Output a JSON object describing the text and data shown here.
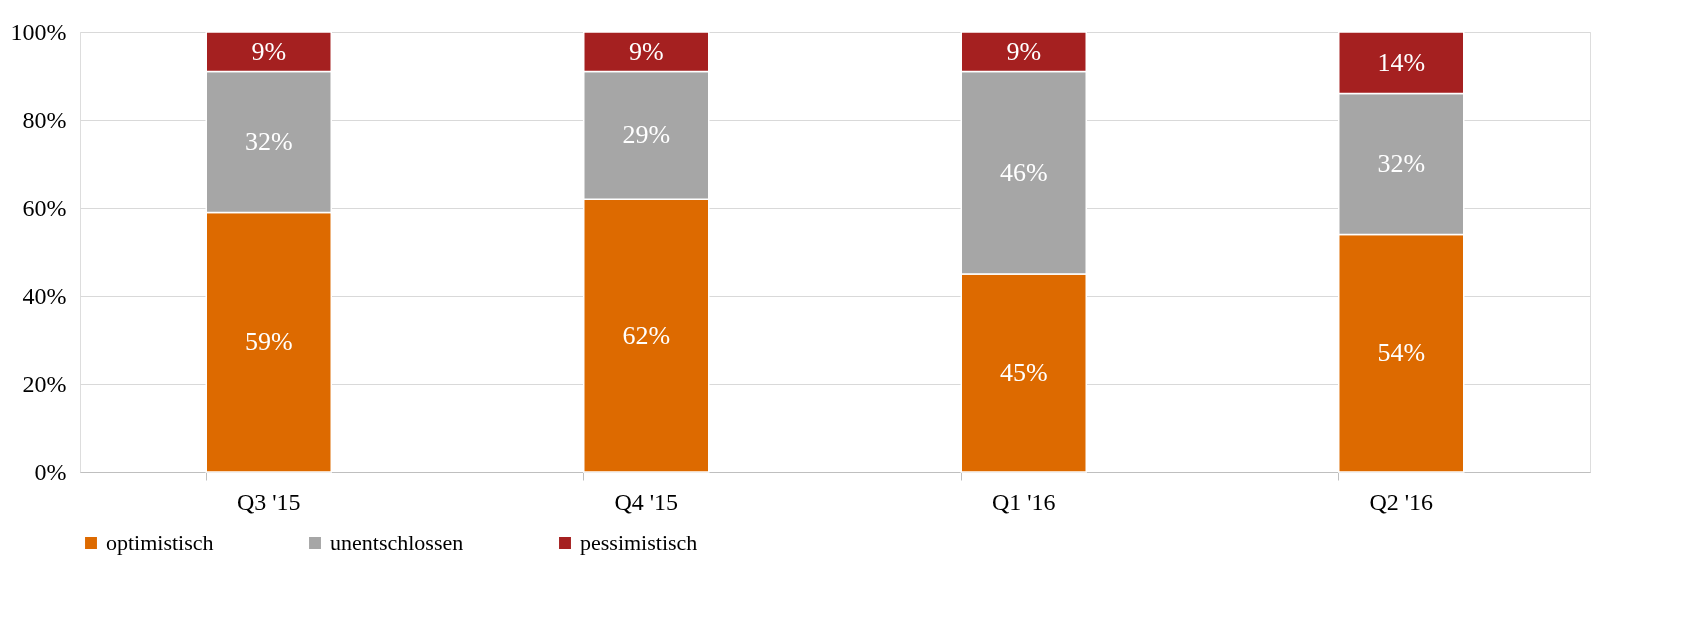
{
  "chart_data": {
    "type": "bar",
    "stacked": true,
    "categories": [
      "Q3 '15",
      "Q4 '15",
      "Q1 '16",
      "Q2 '16"
    ],
    "series": [
      {
        "name": "optimistisch",
        "color": "#dd6a00",
        "values": [
          59,
          62,
          45,
          54
        ],
        "value_labels": [
          "59%",
          "62%",
          "45%",
          "54%"
        ]
      },
      {
        "name": "unentschlossen",
        "color": "#a6a6a6",
        "values": [
          32,
          29,
          46,
          32
        ],
        "value_labels": [
          "32%",
          "29%",
          "46%",
          "32%"
        ]
      },
      {
        "name": "pessimistisch",
        "color": "#a52020",
        "values": [
          9,
          9,
          9,
          14
        ],
        "value_labels": [
          "9%",
          "9%",
          "9%",
          "14%"
        ]
      }
    ],
    "ylim": [
      0,
      100
    ],
    "yticks": [
      {
        "value": 0,
        "label": "0%"
      },
      {
        "value": 20,
        "label": "20%"
      },
      {
        "value": 40,
        "label": "40%"
      },
      {
        "value": 60,
        "label": "60%"
      },
      {
        "value": 80,
        "label": "80%"
      },
      {
        "value": 100,
        "label": "100%"
      }
    ],
    "grid": "y",
    "legend": "bottom"
  }
}
